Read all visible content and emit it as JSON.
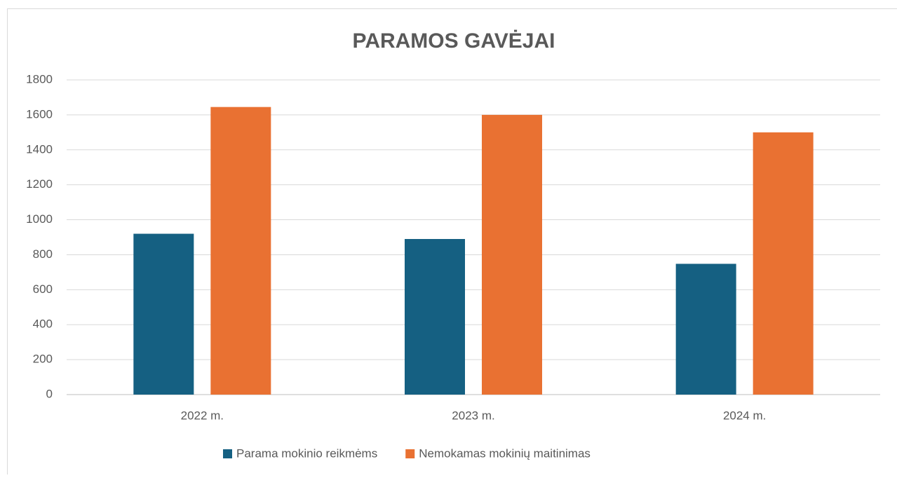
{
  "chart_data": {
    "type": "bar",
    "title": "PARAMOS GAVĖJAI",
    "categories": [
      "2022 m.",
      "2023 m.",
      "2024 m."
    ],
    "series": [
      {
        "name": "Parama mokinio reikmėms",
        "color": "#156082",
        "values": [
          920,
          890,
          748
        ]
      },
      {
        "name": "Nemokamas mokinių maitinimas",
        "color": "#e97132",
        "values": [
          1645,
          1600,
          1500
        ]
      }
    ],
    "ylim": [
      0,
      1800
    ],
    "yticks": [
      0,
      200,
      400,
      600,
      800,
      1000,
      1200,
      1400,
      1600,
      1800
    ],
    "grid": true,
    "legend": "bottom"
  }
}
